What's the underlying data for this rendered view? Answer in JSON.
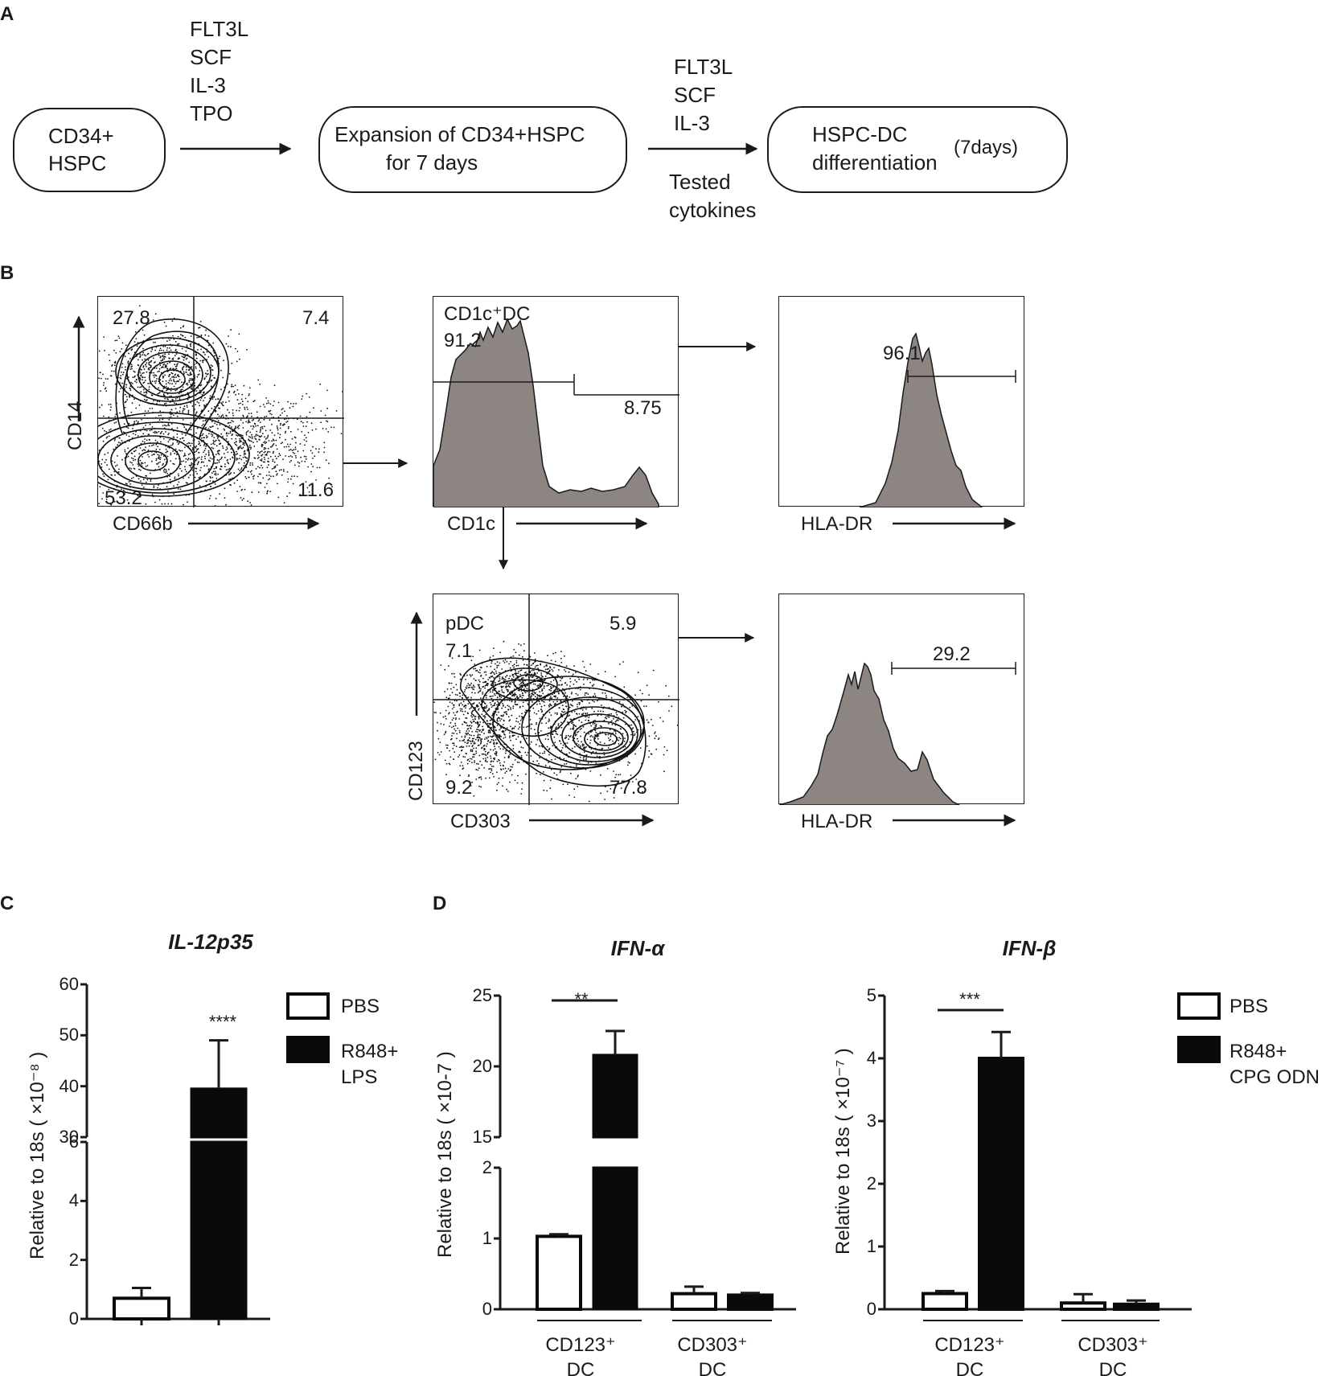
{
  "panels": {
    "a": "A",
    "b": "B",
    "c": "C",
    "d": "D"
  },
  "workflow": {
    "box1": [
      "CD34+",
      "HSPC"
    ],
    "cytokines1": [
      "FLT3L",
      "SCF",
      "IL-3",
      "TPO"
    ],
    "box2": [
      "Expansion of CD34+HSPC",
      "for 7 days"
    ],
    "cytokines2": [
      "FLT3L",
      "SCF",
      "IL-3"
    ],
    "tested": [
      "Tested",
      "cytokines"
    ],
    "box3": [
      "HSPC-DC",
      "differentiation",
      "(7days)"
    ]
  },
  "flow": {
    "p1": {
      "xaxis": "CD66b",
      "yaxis": "CD14",
      "q_ul": "27.8",
      "q_ur": "7.4",
      "q_ll": "53.2",
      "q_lr": "11.6"
    },
    "p2": {
      "gate_label": "CD1c⁺DC",
      "gate_value": "91.2",
      "neg_value": "8.75",
      "xaxis": "CD1c"
    },
    "p3": {
      "value": "96.1",
      "xaxis": "HLA-DR"
    },
    "p4": {
      "gate_label": "pDC",
      "q_ul": "7.1",
      "q_ur": "5.9",
      "q_ll": "9.2",
      "q_lr": "77.8",
      "xaxis": "CD303",
      "yaxis": "CD123"
    },
    "p5": {
      "value": "29.2",
      "xaxis": "HLA-DR"
    }
  },
  "chart_data": [
    {
      "type": "bar",
      "title": "IL-12p35",
      "ylabel": "Relative to 18s ( ×10⁻⁸ )",
      "broken_axis": {
        "lower_range": [
          0,
          6
        ],
        "upper_range": [
          30,
          60
        ]
      },
      "lower_ticks": [
        "0",
        "2",
        "4",
        "6"
      ],
      "upper_ticks": [
        "30",
        "40",
        "50",
        "60"
      ],
      "series": [
        {
          "name": "PBS",
          "values": [
            0.7
          ],
          "error": [
            0.35
          ]
        },
        {
          "name": "R848+ LPS",
          "values": [
            39.5
          ],
          "error": [
            9.5
          ]
        }
      ],
      "legend": [
        "PBS",
        "R848+",
        "LPS"
      ],
      "significance": "****"
    },
    {
      "type": "bar",
      "title": "IFN-α",
      "ylabel": "Relative to 18s ( ×10-7 )",
      "broken_axis": {
        "lower_range": [
          0,
          2
        ],
        "upper_range": [
          15,
          25
        ]
      },
      "lower_ticks": [
        "0",
        "1",
        "2"
      ],
      "upper_ticks": [
        "15",
        "20",
        "25"
      ],
      "categories": [
        "CD123⁺ DC",
        "CD303⁺ DC"
      ],
      "category_lines": [
        [
          "CD123⁺",
          "DC"
        ],
        [
          "CD303⁺",
          "DC"
        ]
      ],
      "series": [
        {
          "name": "PBS",
          "values": [
            1.03,
            0.22
          ],
          "error": [
            0.03,
            0.1
          ]
        },
        {
          "name": "R848+ CPG ODN",
          "values": [
            20.8,
            0.2
          ],
          "error": [
            1.7,
            0.03
          ]
        }
      ],
      "significance": "**"
    },
    {
      "type": "bar",
      "title": "IFN-β",
      "ylabel": "Relative to 18s ( ×10⁻⁷ )",
      "ylim": [
        0,
        5
      ],
      "ticks": [
        "0",
        "1",
        "2",
        "3",
        "4",
        "5"
      ],
      "categories": [
        "CD123⁺ DC",
        "CD303⁺ DC"
      ],
      "category_lines": [
        [
          "CD123⁺",
          "DC"
        ],
        [
          "CD303⁺",
          "DC"
        ]
      ],
      "series": [
        {
          "name": "PBS",
          "values": [
            0.25,
            0.1
          ],
          "error": [
            0.04,
            0.14
          ]
        },
        {
          "name": "R848+ CPG ODN",
          "values": [
            4.0,
            0.08
          ],
          "error": [
            0.42,
            0.06
          ]
        }
      ],
      "legend": [
        "PBS",
        "R848+",
        "CPG ODN"
      ],
      "significance": "***"
    }
  ]
}
